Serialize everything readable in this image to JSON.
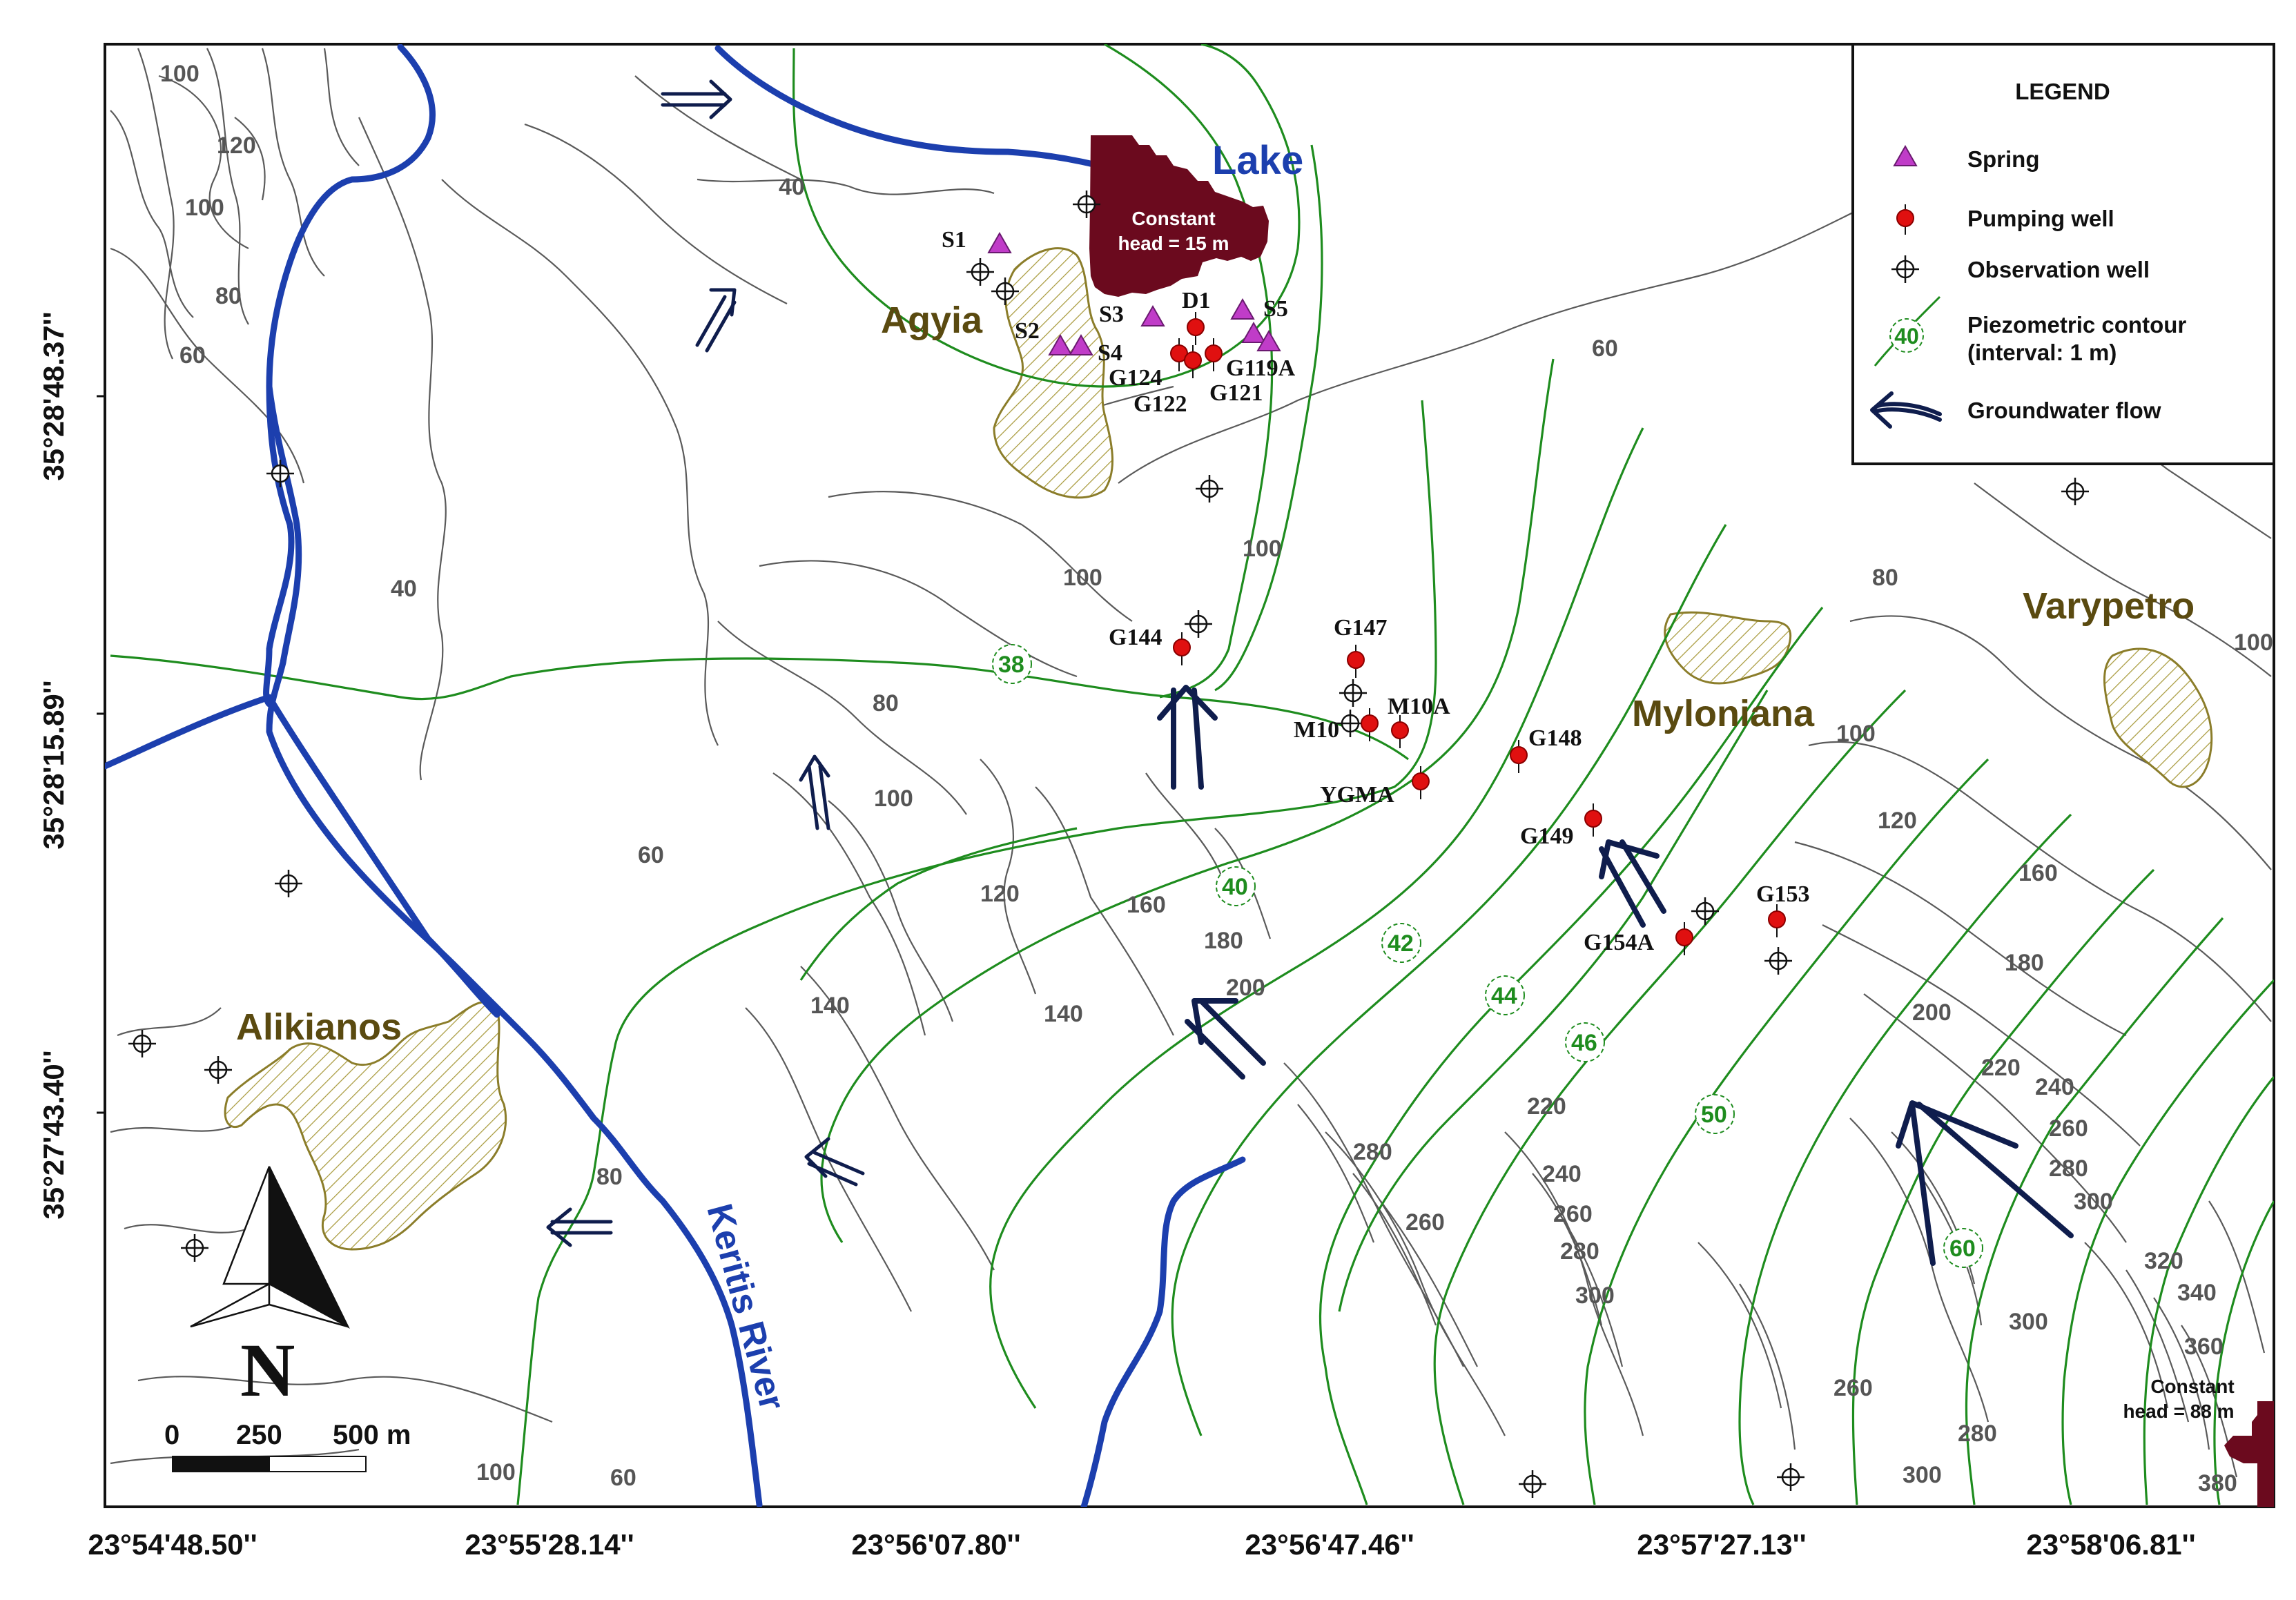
{
  "map": {
    "lake_label": "Lake",
    "lake_head_label": [
      "Constant",
      "head = 15 m"
    ],
    "se_head_label": [
      "Constant",
      "head = 88 m"
    ],
    "river_label": "Keritis River",
    "places": {
      "agyia": "Agyia",
      "mylonia": "Myloniana",
      "varypetro": "Varypetro",
      "alikianos": "Alikianos"
    },
    "wells": {
      "S1": "S1",
      "S2": "S2",
      "S3": "S3",
      "S4": "S4",
      "S5": "S5",
      "D1": "D1",
      "G119A": "G119A",
      "G124": "G124",
      "G122": "G122",
      "G121": "G121",
      "G144": "G144",
      "G147": "G147",
      "M10A": "M10A",
      "M10": "M10",
      "YGMA": "YGMA",
      "G148": "G148",
      "G149": "G149",
      "G153": "G153",
      "G154A": "G154A"
    },
    "topo_labels": [
      "100",
      "120",
      "100",
      "80",
      "60",
      "40",
      "40",
      "60",
      "100",
      "100",
      "80",
      "60",
      "80",
      "100",
      "100",
      "120",
      "120",
      "140",
      "160",
      "180",
      "200",
      "140",
      "160",
      "180",
      "200",
      "220",
      "240",
      "260",
      "280",
      "300",
      "320",
      "340",
      "360",
      "380",
      "220",
      "240",
      "260",
      "280",
      "300",
      "260",
      "280",
      "300",
      "260",
      "280",
      "300",
      "100",
      "80",
      "100",
      "60"
    ],
    "piezo_labels": [
      "38",
      "40",
      "42",
      "44",
      "46",
      "50",
      "60",
      "40"
    ],
    "north_label": "N",
    "scale": {
      "s0": "0",
      "s1": "250",
      "s2": "500 m"
    }
  },
  "legend": {
    "title": "LEGEND",
    "spring": "Spring",
    "pumping": "Pumping well",
    "observation": "Observation well",
    "piezo_1": "Piezometric contour",
    "piezo_2": "(interval: 1 m)",
    "piezo_sample": "40",
    "flow": "Groundwater flow"
  },
  "axes": {
    "y": [
      "35°28'48.37''",
      "35°28'15.89''",
      "35°27'43.40''"
    ],
    "x": [
      "23°54'48.50''",
      "23°55'28.14''",
      "23°56'07.80''",
      "23°56'47.46''",
      "23°57'27.13''",
      "23°58'06.81''"
    ]
  },
  "colors": {
    "river": "#1c3fae",
    "piezometric": "#1e8c1e",
    "topography": "#5a5a5a",
    "constant_head": "#6b0a1e",
    "spring": "#c03cc8",
    "pumping_well": "#e01010",
    "flow_arrow": "#0f1d4d"
  }
}
